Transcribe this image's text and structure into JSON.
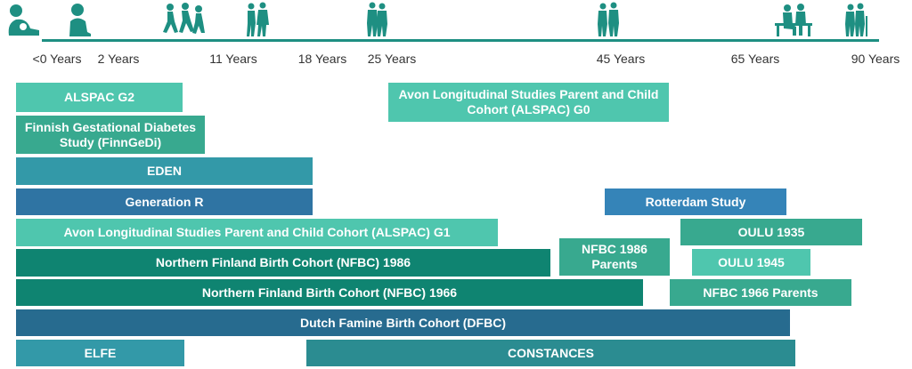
{
  "ages": [
    "<0 Years",
    "2 Years",
    "11 Years",
    "18 Years",
    "25 Years",
    "45 Years",
    "65 Years",
    "90 Years"
  ],
  "icons": [
    "infant-icon",
    "toddler-icon",
    "children-running-icon",
    "teenagers-icon",
    "young-adults-icon",
    "adults-icon",
    "seniors-bench-icon",
    "elderly-couple-icon"
  ],
  "colors": {
    "light_teal": "#4fc6ae",
    "mint": "#38a98f",
    "teal": "#3399a8",
    "blue": "#2f74a3",
    "sky_blue": "#3584b8",
    "dark_green": "#0f8471",
    "navy_teal": "#276b8f",
    "deep_teal": "#2b8c91",
    "line": "#1e8f82"
  },
  "cohorts": [
    {
      "label": "ALSPAC G2",
      "color": "light_teal"
    },
    {
      "label": "Avon Longitudinal Studies Parent and Child Cohort (ALSPAC) G0",
      "color": "light_teal"
    },
    {
      "label": "Finnish Gestational Diabetes Study (FinnGeDi)",
      "color": "mint"
    },
    {
      "label": "EDEN",
      "color": "teal"
    },
    {
      "label": "Generation R",
      "color": "blue"
    },
    {
      "label": "Rotterdam Study",
      "color": "sky_blue"
    },
    {
      "label": "Avon Longitudinal Studies Parent and Child Cohort (ALSPAC) G1",
      "color": "light_teal"
    },
    {
      "label": "OULU 1935",
      "color": "mint"
    },
    {
      "label": "Northern Finland Birth Cohort (NFBC) 1986",
      "color": "dark_green"
    },
    {
      "label": "NFBC 1986 Parents",
      "color": "mint"
    },
    {
      "label": "OULU 1945",
      "color": "light_teal"
    },
    {
      "label": "Northern Finland Birth Cohort (NFBC) 1966",
      "color": "dark_green"
    },
    {
      "label": "NFBC 1966 Parents",
      "color": "mint"
    },
    {
      "label": "Dutch Famine Birth Cohort (DFBC)",
      "color": "navy_teal"
    },
    {
      "label": "ELFE",
      "color": "teal"
    },
    {
      "label": "CONSTANCES",
      "color": "deep_teal"
    }
  ]
}
